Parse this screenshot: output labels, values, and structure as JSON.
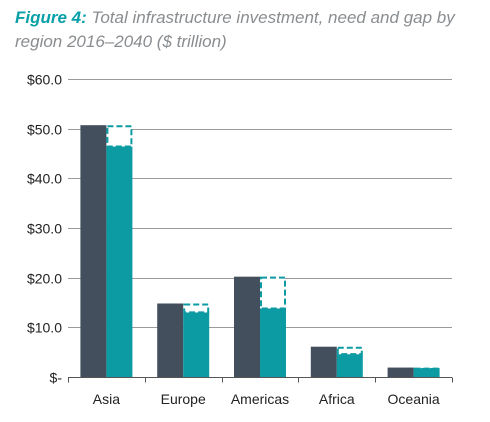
{
  "title_prefix": "Figure 4:",
  "title_text": "Total infrastructure investment, need and gap by region 2016–2040 ($ trillion)",
  "colors": {
    "need": "#434f5d",
    "investment": "#0c9ba3",
    "gap_outline": "#0c9ba3",
    "grid": "#9a9a9a",
    "title_accent": "#0aa0a8",
    "title": "#8a8d90"
  },
  "chart_data": {
    "type": "bar",
    "title": "Total infrastructure investment, need and gap by region 2016–2040 ($ trillion)",
    "categories": [
      "Asia",
      "Europe",
      "Americas",
      "Africa",
      "Oceania"
    ],
    "series": [
      {
        "values": [
          50.7,
          14.8,
          20.2,
          6.1,
          1.9
        ]
      },
      {
        "values": [
          46.4,
          13.0,
          13.8,
          4.6,
          1.8
        ]
      },
      {
        "values": [
          4.3,
          1.8,
          6.4,
          1.5,
          0.1
        ]
      }
    ],
    "ylim": [
      0,
      60
    ],
    "yticks": [
      0,
      10,
      20,
      30,
      40,
      50,
      60
    ],
    "ytick_labels": [
      "$-",
      "$10.0",
      "$20.0",
      "$30.0",
      "$40.0",
      "$50.0",
      "$60.0"
    ],
    "xlabel": "",
    "ylabel": "",
    "grid": true
  }
}
